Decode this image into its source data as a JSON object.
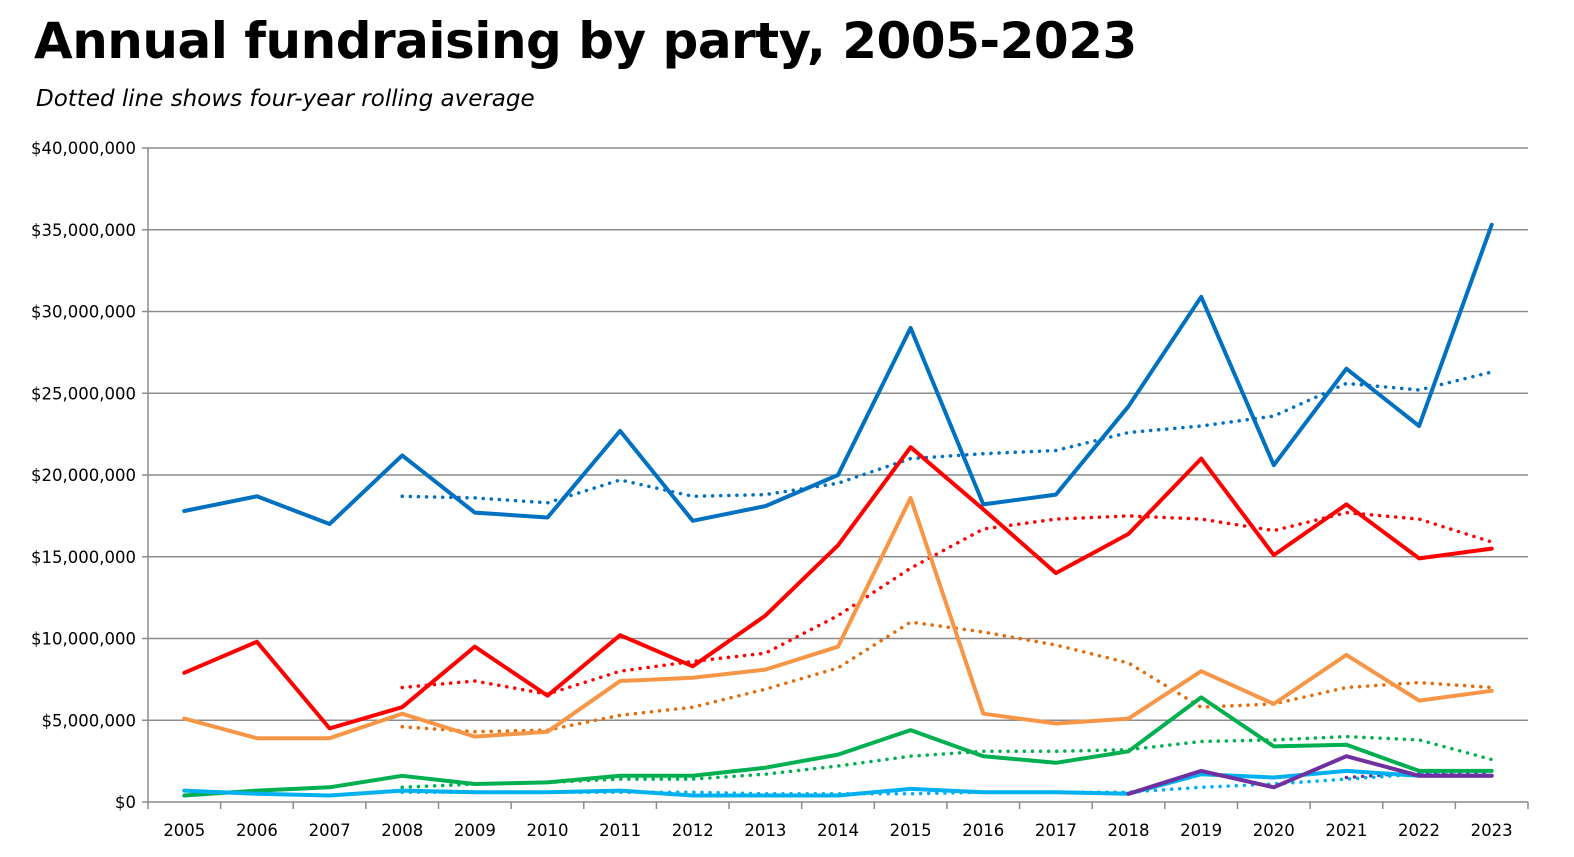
{
  "chart_data": {
    "type": "line",
    "title": "Annual fundraising by party, 2005-2023",
    "subtitle": "Dotted line shows four-year rolling average",
    "xlabel": "",
    "ylabel": "",
    "categories": [
      "2005",
      "2006",
      "2007",
      "2008",
      "2009",
      "2010",
      "2011",
      "2012",
      "2013",
      "2014",
      "2015",
      "2016",
      "2017",
      "2018",
      "2019",
      "2020",
      "2021",
      "2022",
      "2023"
    ],
    "ylim": [
      0,
      40000000
    ],
    "yticks": [
      0,
      5000000,
      10000000,
      15000000,
      20000000,
      25000000,
      30000000,
      35000000,
      40000000
    ],
    "ytick_labels": [
      "$0",
      "$5,000,000",
      "$10,000,000",
      "$15,000,000",
      "$20,000,000",
      "$25,000,000",
      "$30,000,000",
      "$35,000,000",
      "$40,000,000"
    ],
    "grid": "horizontal",
    "legend": "none",
    "series": [
      {
        "color": "#0070c0",
        "style": "solid",
        "values": [
          17800000,
          18700000,
          17000000,
          21200000,
          17700000,
          17400000,
          22700000,
          17200000,
          18100000,
          20000000,
          29000000,
          18200000,
          18800000,
          24200000,
          30900000,
          20600000,
          26500000,
          23000000,
          35300000
        ]
      },
      {
        "color": "#0070c0",
        "style": "dotted",
        "values": [
          null,
          null,
          null,
          18700000,
          18600000,
          18300000,
          19700000,
          18700000,
          18800000,
          19500000,
          21000000,
          21300000,
          21500000,
          22600000,
          23000000,
          23600000,
          25600000,
          25200000,
          26300000
        ]
      },
      {
        "color": "#ff0000",
        "style": "solid",
        "values": [
          7900000,
          9800000,
          4500000,
          5800000,
          9500000,
          6500000,
          10200000,
          8300000,
          11400000,
          15700000,
          21700000,
          17900000,
          14000000,
          16400000,
          21000000,
          15100000,
          18200000,
          14900000,
          15500000
        ]
      },
      {
        "color": "#ff0000",
        "style": "dotted",
        "values": [
          null,
          null,
          null,
          7000000,
          7400000,
          6600000,
          8000000,
          8600000,
          9100000,
          11400000,
          14300000,
          16700000,
          17300000,
          17500000,
          17300000,
          16600000,
          17700000,
          17300000,
          15900000
        ]
      },
      {
        "color": "#f79646",
        "style": "solid",
        "values": [
          5100000,
          3900000,
          3900000,
          5400000,
          4000000,
          4300000,
          7400000,
          7600000,
          8100000,
          9500000,
          18600000,
          5400000,
          4800000,
          5100000,
          8000000,
          6000000,
          9000000,
          6200000,
          6800000
        ]
      },
      {
        "color": "#e36c09",
        "style": "dotted",
        "values": [
          null,
          null,
          null,
          4600000,
          4300000,
          4400000,
          5300000,
          5800000,
          6900000,
          8200000,
          11000000,
          10400000,
          9600000,
          8500000,
          5800000,
          6000000,
          7000000,
          7300000,
          7000000
        ]
      },
      {
        "color": "#00b050",
        "style": "solid",
        "values": [
          400000,
          700000,
          900000,
          1600000,
          1100000,
          1200000,
          1600000,
          1600000,
          2100000,
          2900000,
          4400000,
          2800000,
          2400000,
          3100000,
          6400000,
          3400000,
          3500000,
          1900000,
          1900000
        ]
      },
      {
        "color": "#00b050",
        "style": "dotted",
        "values": [
          null,
          null,
          null,
          900000,
          1100000,
          1200000,
          1400000,
          1400000,
          1700000,
          2200000,
          2800000,
          3100000,
          3100000,
          3200000,
          3700000,
          3800000,
          4000000,
          3800000,
          2600000
        ]
      },
      {
        "color": "#00b0f0",
        "style": "solid",
        "values": [
          700000,
          500000,
          400000,
          700000,
          600000,
          600000,
          700000,
          400000,
          400000,
          400000,
          800000,
          600000,
          600000,
          500000,
          1700000,
          1500000,
          1900000,
          1600000,
          1600000
        ]
      },
      {
        "color": "#00b0f0",
        "style": "dotted",
        "values": [
          null,
          null,
          null,
          600000,
          600000,
          600000,
          600000,
          600000,
          500000,
          500000,
          500000,
          600000,
          600000,
          600000,
          900000,
          1100000,
          1400000,
          1700000,
          1600000
        ]
      },
      {
        "color": "#7030a0",
        "style": "solid",
        "values": [
          null,
          null,
          null,
          null,
          null,
          null,
          null,
          null,
          null,
          null,
          null,
          null,
          null,
          500000,
          1900000,
          900000,
          2800000,
          1600000,
          1600000
        ]
      },
      {
        "color": "#7030a0",
        "style": "dotted",
        "values": [
          null,
          null,
          null,
          null,
          null,
          null,
          null,
          null,
          null,
          null,
          null,
          null,
          null,
          null,
          null,
          null,
          1500000,
          1800000,
          1800000
        ]
      }
    ]
  }
}
